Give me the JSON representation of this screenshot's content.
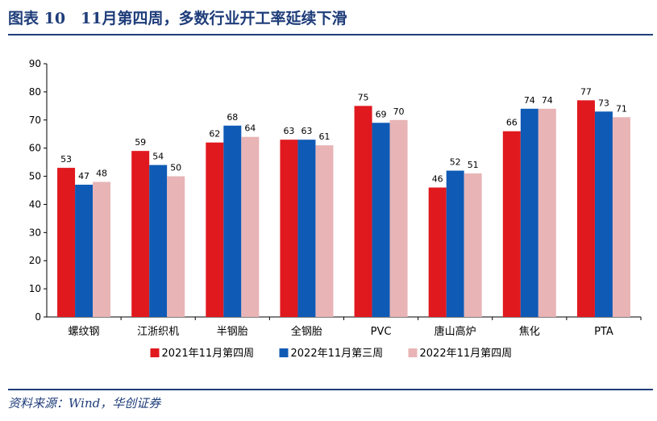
{
  "header": {
    "title": "图表 10　11月第四周，多数行业开工率延续下滑"
  },
  "footer": {
    "source": "资料来源：Wind，华创证券"
  },
  "colors": {
    "brand": "#1f3d7a",
    "series": [
      "#e0191f",
      "#0f5ab5",
      "#e8b4b6"
    ]
  },
  "chart_data": {
    "type": "bar",
    "title": "",
    "xlabel": "",
    "ylabel": "",
    "ylim": [
      0,
      90
    ],
    "yticks": [
      0,
      10,
      20,
      30,
      40,
      50,
      60,
      70,
      80,
      90
    ],
    "grid": false,
    "legend_position": "bottom",
    "categories": [
      "螺纹钢",
      "江浙织机",
      "半钢胎",
      "全钢胎",
      "PVC",
      "唐山高炉",
      "焦化",
      "PTA"
    ],
    "series": [
      {
        "name": "2021年11月第四周",
        "values": [
          53,
          59,
          62,
          63,
          75,
          46,
          66,
          77
        ]
      },
      {
        "name": "2022年11月第三周",
        "values": [
          47,
          54,
          68,
          63,
          69,
          52,
          74,
          73
        ]
      },
      {
        "name": "2022年11月第四周",
        "values": [
          48,
          50,
          64,
          61,
          70,
          51,
          74,
          71
        ]
      }
    ]
  }
}
